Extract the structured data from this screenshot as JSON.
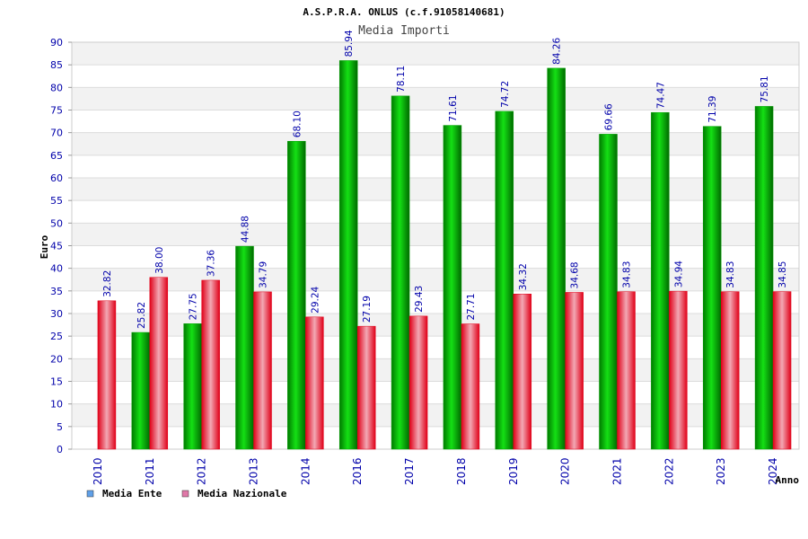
{
  "chart_data": {
    "type": "bar",
    "title": "A.S.P.R.A. ONLUS (c.f.91058140681)",
    "subtitle": "Media Importi",
    "xlabel": "Anno",
    "ylabel": "Euro",
    "ylim": [
      0,
      90
    ],
    "ytick_step": 5,
    "grid": true,
    "legend_position": "bottom-left",
    "categories": [
      "2010",
      "2011",
      "2012",
      "2013",
      "2014",
      "2016",
      "2017",
      "2018",
      "2019",
      "2020",
      "2021",
      "2022",
      "2023",
      "2024"
    ],
    "series": [
      {
        "name": "Media Ente",
        "color": "#00b400",
        "legend_color": "#5fa0e8",
        "values": [
          null,
          25.82,
          27.75,
          44.88,
          68.1,
          85.94,
          78.11,
          71.61,
          74.72,
          84.26,
          69.66,
          74.47,
          71.39,
          75.81
        ],
        "labels": [
          "",
          "25.82",
          "27.75",
          "44.88",
          "68.10",
          "85.94",
          "78.11",
          "71.61",
          "74.72",
          "84.26",
          "69.66",
          "74.47",
          "71.39",
          "75.81"
        ]
      },
      {
        "name": "Media Nazionale",
        "color": "#e8001c",
        "legend_color": "#e078a8",
        "values": [
          32.82,
          38.0,
          37.36,
          34.79,
          29.24,
          27.19,
          29.43,
          27.71,
          34.32,
          34.68,
          34.83,
          34.94,
          34.83,
          34.85
        ],
        "labels": [
          "32.82",
          "38.00",
          "37.36",
          "34.79",
          "29.24",
          "27.19",
          "29.43",
          "27.71",
          "34.32",
          "34.68",
          "34.83",
          "34.94",
          "34.83",
          "34.85"
        ]
      }
    ]
  }
}
